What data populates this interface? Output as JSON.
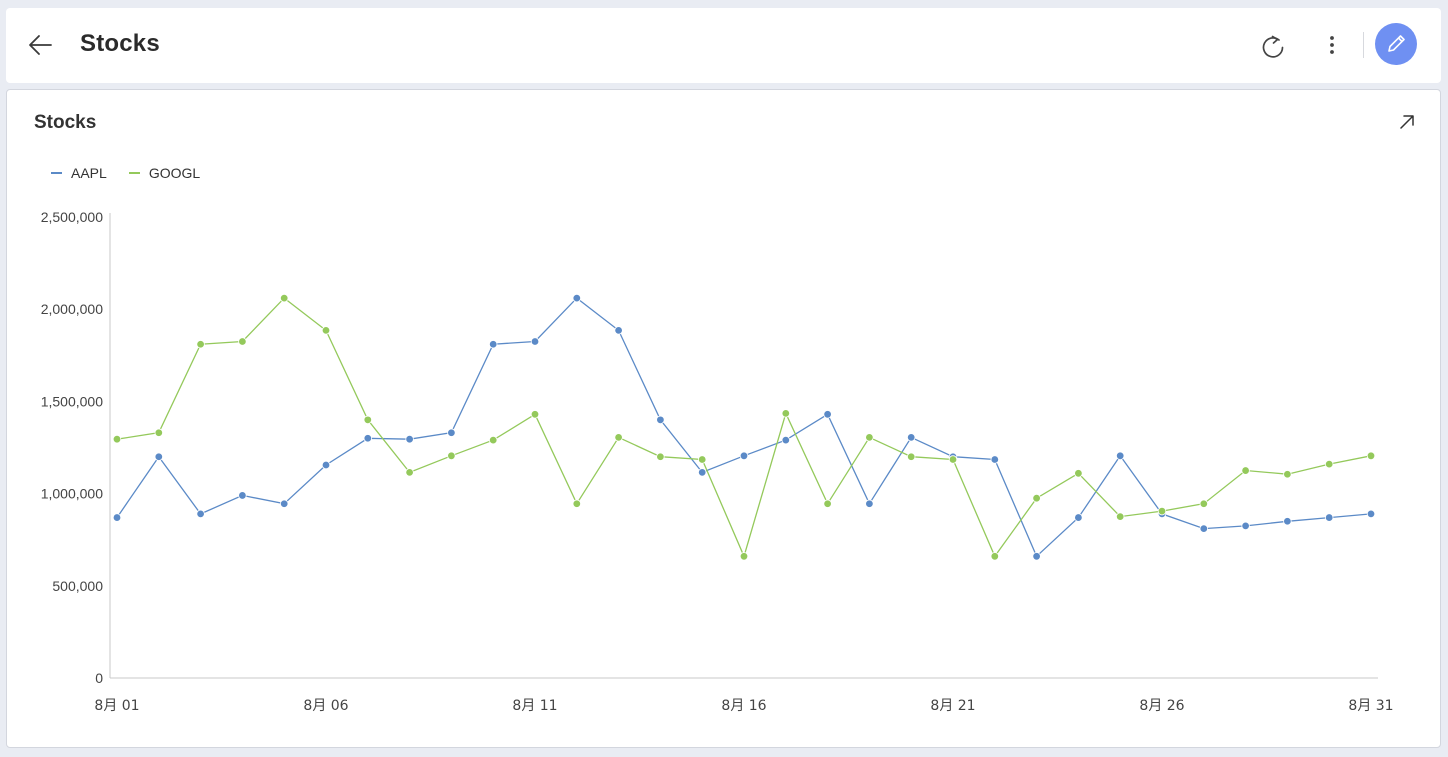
{
  "header": {
    "title": "Stocks",
    "back_icon": "arrow-left-icon",
    "refresh_icon": "refresh-icon",
    "more_icon": "more-vertical-icon",
    "edit_icon": "pencil-icon"
  },
  "card": {
    "title": "Stocks",
    "expand_icon": "expand-arrow-icon"
  },
  "colors": {
    "AAPL": "#5b8ac7",
    "GOOGL": "#94c95b",
    "edit_button": "#6f90f2"
  },
  "chart_data": {
    "type": "line",
    "x": [
      "8月 01",
      "8月 02",
      "8月 03",
      "8月 04",
      "8月 05",
      "8月 06",
      "8月 07",
      "8月 08",
      "8月 09",
      "8月 10",
      "8月 11",
      "8月 12",
      "8月 13",
      "8月 14",
      "8月 15",
      "8月 16",
      "8月 17",
      "8月 18",
      "8月 19",
      "8月 20",
      "8月 21",
      "8月 22",
      "8月 23",
      "8月 24",
      "8月 25",
      "8月 26",
      "8月 27",
      "8月 28",
      "8月 29",
      "8月 30",
      "8月 31"
    ],
    "x_tick_labels": [
      "8月 01",
      "8月 06",
      "8月 11",
      "8月 16",
      "8月 21",
      "8月 26",
      "8月 31"
    ],
    "series": [
      {
        "name": "AAPL",
        "values": [
          870000,
          1200000,
          890000,
          990000,
          945000,
          1155000,
          1300000,
          1295000,
          1330000,
          1810000,
          1825000,
          2060000,
          1885000,
          1400000,
          1115000,
          1205000,
          1290000,
          1430000,
          945000,
          1305000,
          1200000,
          1185000,
          660000,
          870000,
          1205000,
          890000,
          810000,
          825000,
          850000,
          870000,
          890000
        ]
      },
      {
        "name": "GOOGL",
        "values": [
          1295000,
          1330000,
          1810000,
          1825000,
          2060000,
          1885000,
          1400000,
          1115000,
          1205000,
          1290000,
          1430000,
          945000,
          1305000,
          1200000,
          1185000,
          660000,
          1435000,
          945000,
          1305000,
          1200000,
          1185000,
          660000,
          975000,
          1110000,
          875000,
          905000,
          945000,
          1125000,
          1105000,
          1160000,
          1205000
        ]
      }
    ],
    "yticks": [
      0,
      500000,
      1000000,
      1500000,
      2000000,
      2500000
    ],
    "ytick_labels": [
      "0",
      "500,000",
      "1,000,000",
      "1,500,000",
      "2,000,000",
      "2,500,000"
    ],
    "ylim": [
      0,
      2500000
    ],
    "title": "Stocks",
    "xlabel": "",
    "ylabel": "",
    "legend_position": "top-left",
    "grid": false
  }
}
